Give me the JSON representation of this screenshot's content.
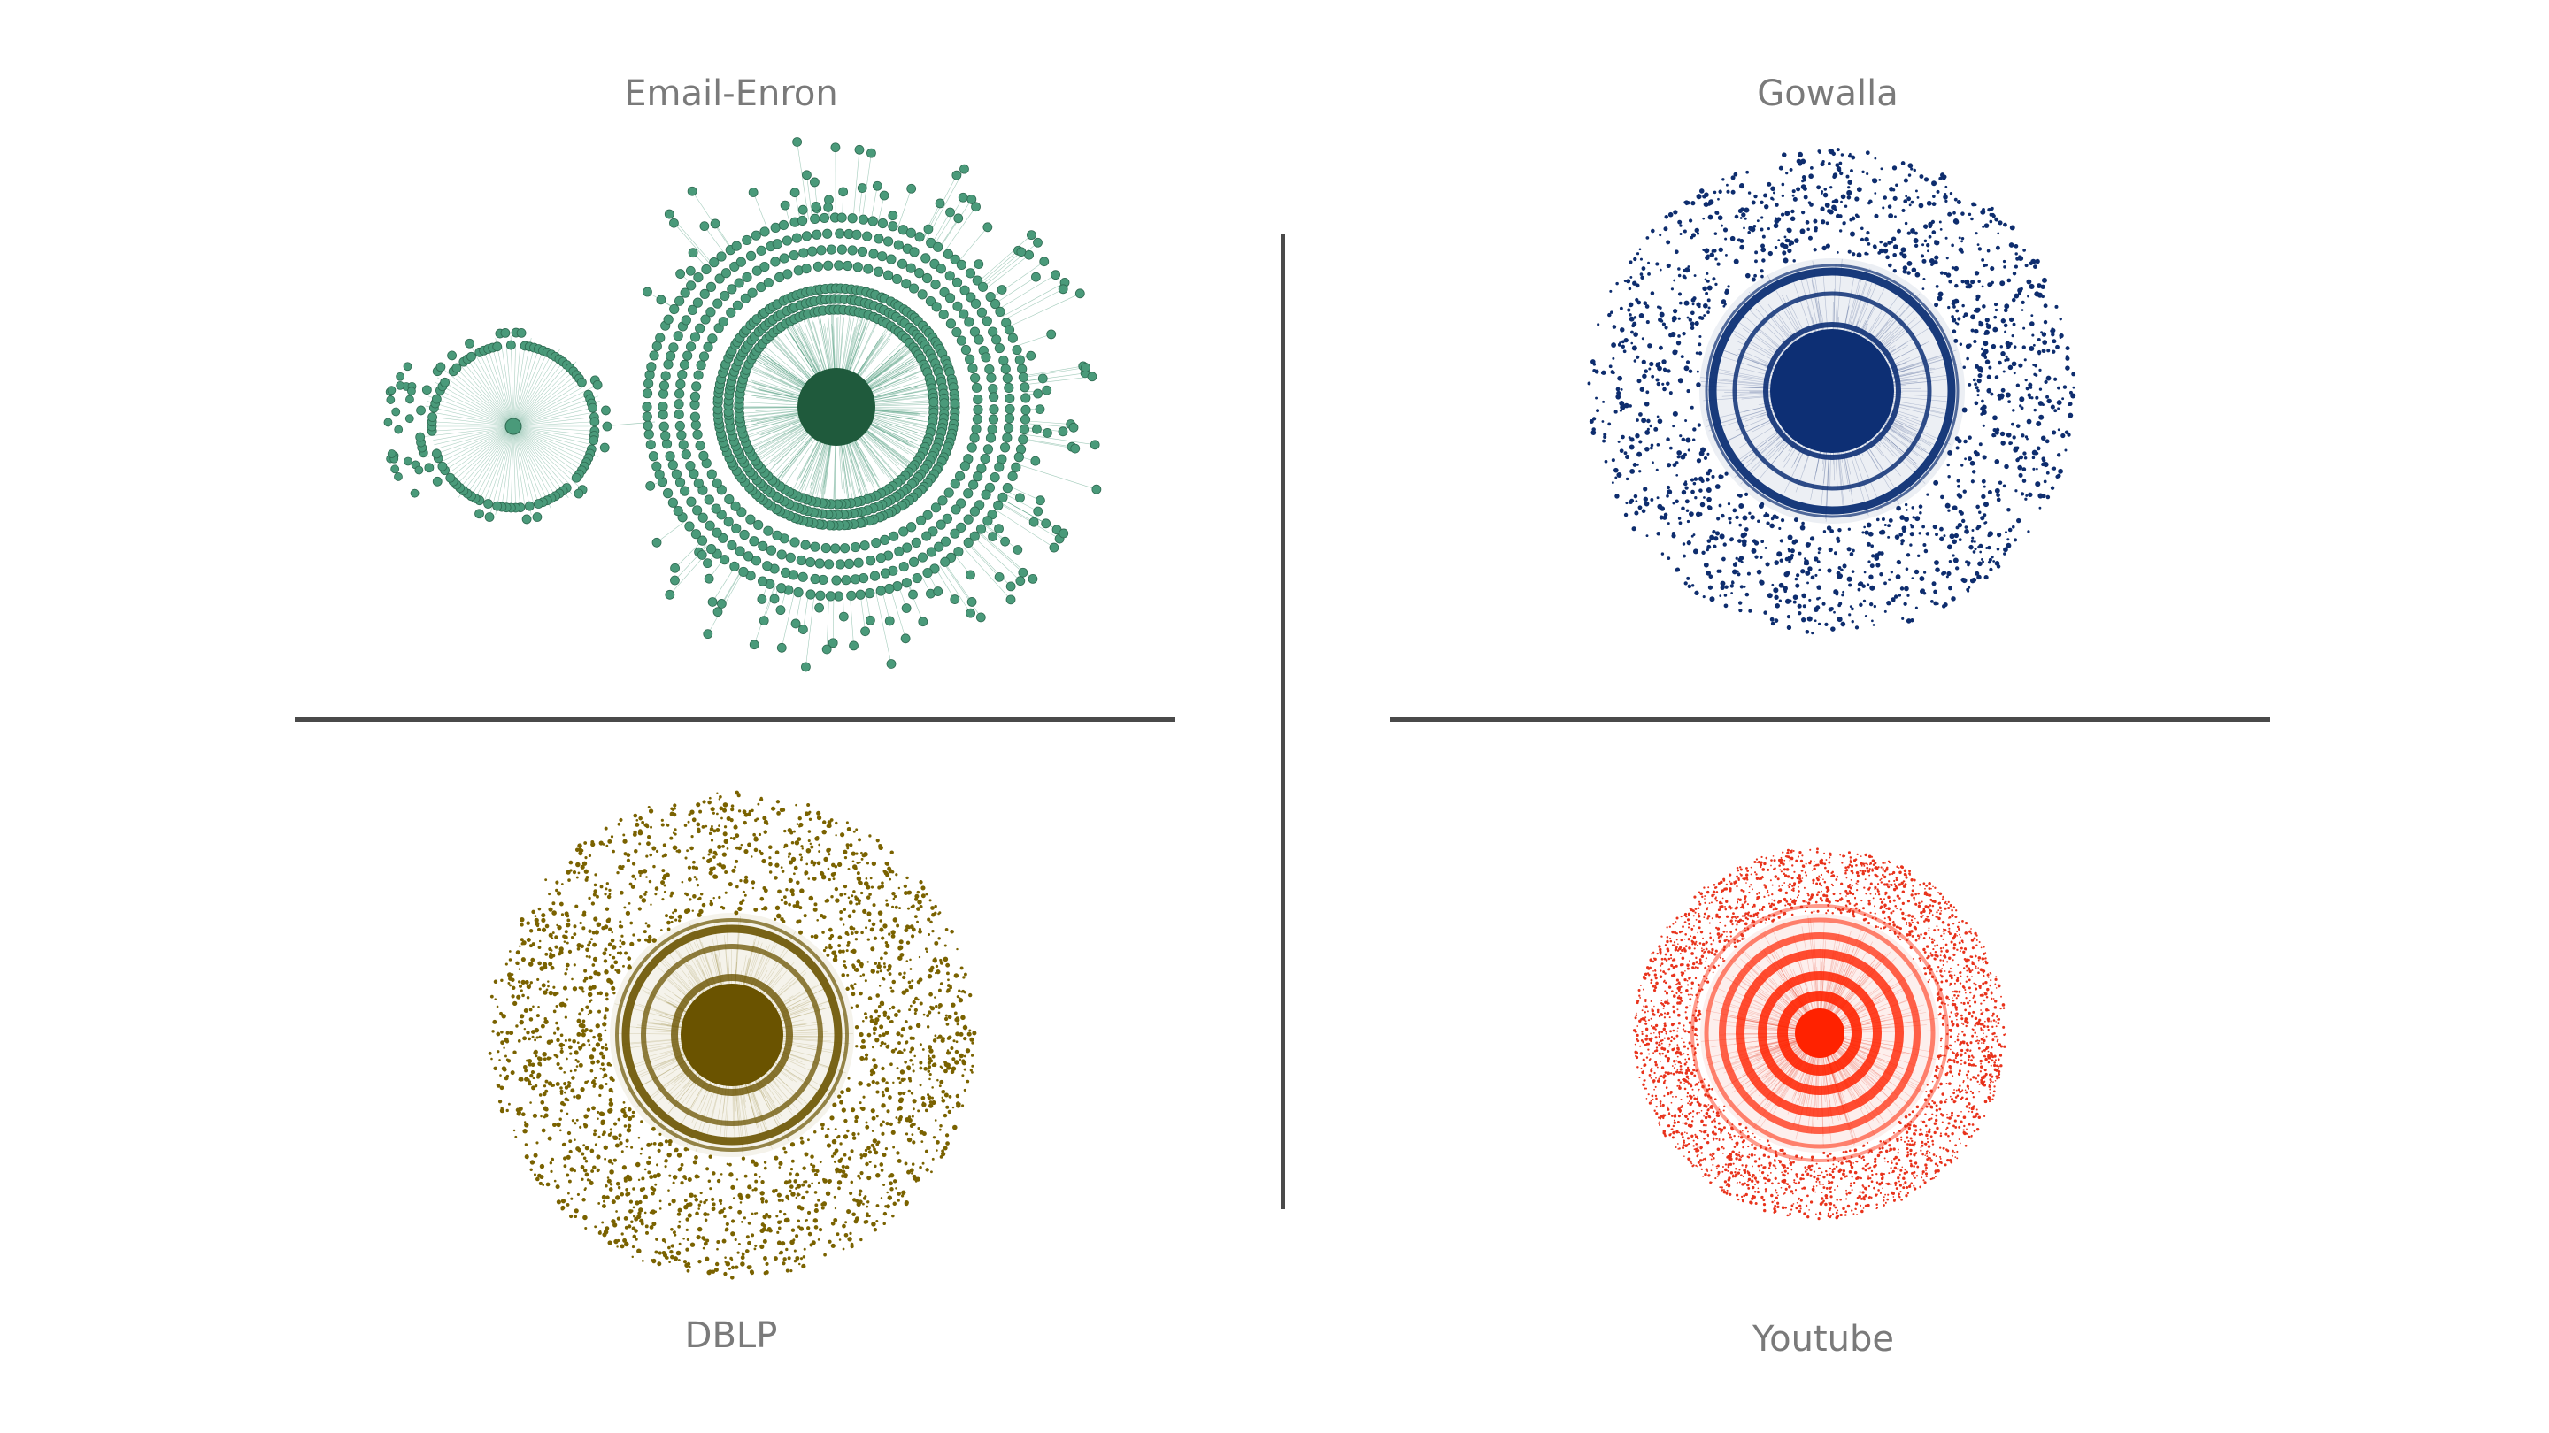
{
  "panels": {
    "enron": {
      "title": "Email-Enron",
      "color": "#4a9a7a",
      "hub_color": "#1f5a3c"
    },
    "gowalla": {
      "title": "Gowalla",
      "color": "#0e2d6e",
      "hub_color": "#0d2f74"
    },
    "dblp": {
      "title": "DBLP",
      "color": "#7a6200",
      "hub_color": "#6a5300"
    },
    "youtube": {
      "title": "Youtube",
      "color": "#e8331c",
      "hub_color": "#ff2200"
    }
  }
}
